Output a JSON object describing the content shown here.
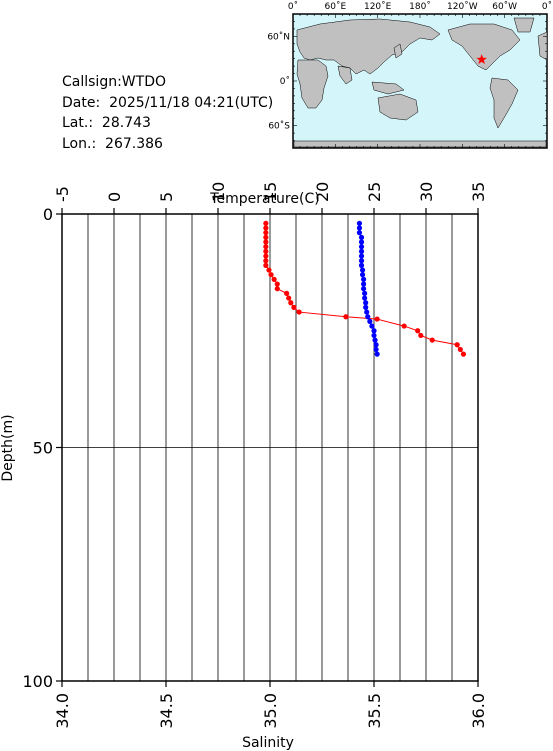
{
  "info": {
    "callsign": "Callsign:WTDO",
    "date": "Date:  2025/11/18 04:21(UTC)",
    "lat": "Lat.:  28.743",
    "lon": "Lon.:  267.386"
  },
  "map": {
    "top_labels": [
      "0˚",
      "60˚E",
      "120˚E",
      "180˚",
      "120˚W",
      "60˚W",
      "0˚"
    ],
    "side_labels": [
      "60˚N",
      "0˚",
      "60˚S"
    ],
    "ocean_color": "#d4f5fa",
    "land_color": "#c0c0c0",
    "marker_color": "#ff0000",
    "station_longitude_east": 267.386,
    "station_latitude": 28.743
  },
  "chart_data": {
    "type": "scatter",
    "y_axis": {
      "label": "Depth(m)",
      "range": [
        0,
        100
      ],
      "inverted": true,
      "ticks": [
        0,
        50,
        100
      ]
    },
    "x_axis_top": {
      "label": "Temperature(C)",
      "range": [
        -5,
        35
      ],
      "ticks": [
        -5,
        0,
        5,
        10,
        15,
        20,
        25,
        30,
        35
      ]
    },
    "x_axis_bottom": {
      "label": "Salinity",
      "range": [
        34.0,
        36.0
      ],
      "ticks": [
        "34.0",
        "34.5",
        "35.0",
        "35.5",
        "36.0"
      ]
    },
    "grid": true,
    "series": [
      {
        "axis": "top",
        "color": "#ff0000",
        "points": [
          [
            14.6,
            2
          ],
          [
            14.6,
            3
          ],
          [
            14.6,
            4
          ],
          [
            14.6,
            5
          ],
          [
            14.6,
            6
          ],
          [
            14.6,
            7
          ],
          [
            14.6,
            8
          ],
          [
            14.6,
            9
          ],
          [
            14.6,
            10
          ],
          [
            14.6,
            11
          ],
          [
            14.9,
            12
          ],
          [
            15.1,
            13
          ],
          [
            15.4,
            14
          ],
          [
            15.7,
            15
          ],
          [
            15.7,
            16
          ],
          [
            16.6,
            17
          ],
          [
            16.8,
            18
          ],
          [
            17.0,
            19
          ],
          [
            17.3,
            20
          ],
          [
            17.8,
            21
          ],
          [
            22.3,
            22
          ],
          [
            25.3,
            22.5
          ],
          [
            27.9,
            24
          ],
          [
            29.2,
            25
          ],
          [
            29.5,
            26
          ],
          [
            30.6,
            27
          ],
          [
            33.0,
            28
          ],
          [
            33.3,
            29
          ],
          [
            33.6,
            30
          ]
        ]
      },
      {
        "axis": "bottom",
        "color": "#0000ff",
        "points": [
          [
            35.43,
            2
          ],
          [
            35.43,
            3
          ],
          [
            35.43,
            4
          ],
          [
            35.44,
            5
          ],
          [
            35.44,
            6
          ],
          [
            35.44,
            7
          ],
          [
            35.44,
            8
          ],
          [
            35.44,
            9
          ],
          [
            35.44,
            10
          ],
          [
            35.44,
            11
          ],
          [
            35.445,
            12
          ],
          [
            35.445,
            13
          ],
          [
            35.45,
            14
          ],
          [
            35.45,
            15
          ],
          [
            35.45,
            16
          ],
          [
            35.455,
            17
          ],
          [
            35.455,
            18
          ],
          [
            35.46,
            19
          ],
          [
            35.46,
            20
          ],
          [
            35.465,
            21
          ],
          [
            35.47,
            22
          ],
          [
            35.48,
            23
          ],
          [
            35.49,
            24
          ],
          [
            35.5,
            25
          ],
          [
            35.5,
            26
          ],
          [
            35.505,
            27
          ],
          [
            35.51,
            28
          ],
          [
            35.51,
            29
          ],
          [
            35.515,
            30
          ]
        ]
      }
    ]
  }
}
